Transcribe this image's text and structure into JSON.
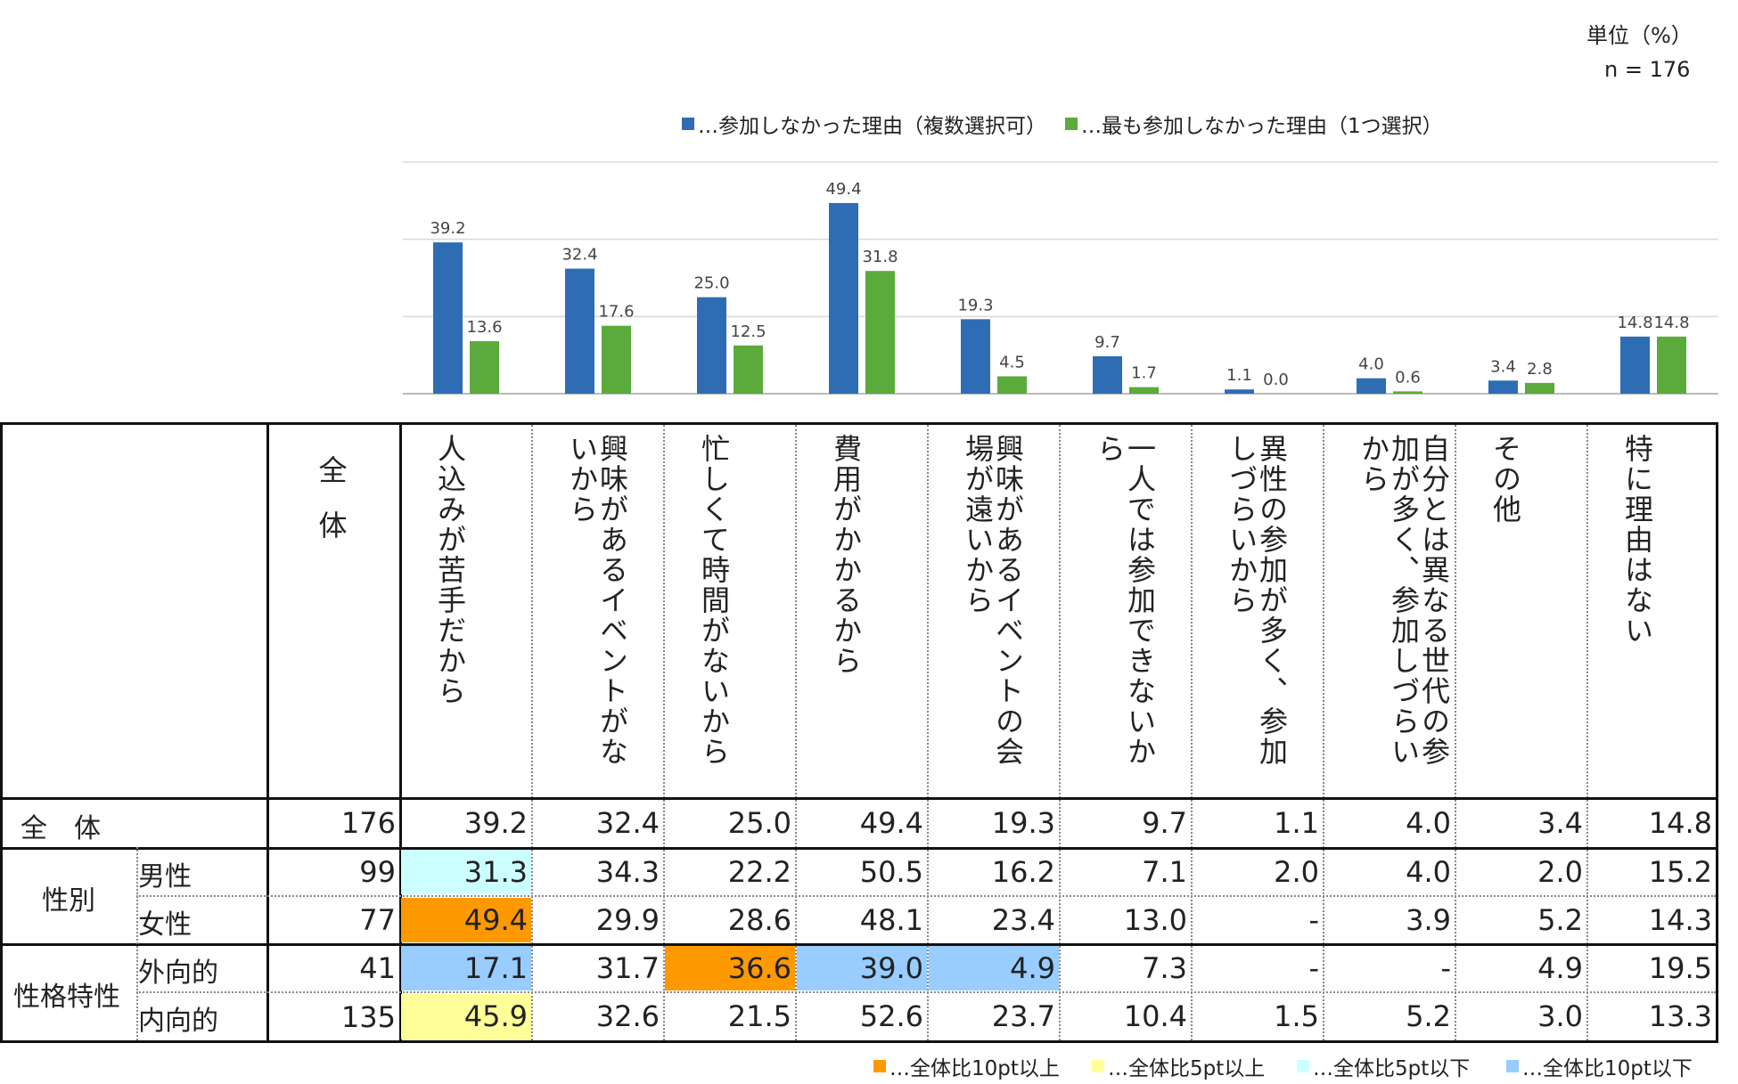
{
  "unit": "単位（%）",
  "n_label": "n = 176",
  "legend": {
    "blue": "…参加しなかった理由（複数選択可）",
    "green": "…最も参加しなかった理由（1つ選択）"
  },
  "colors": {
    "blue": "#2e6db4",
    "green": "#5aab3c",
    "orange": "#ff9900",
    "yellow": "#ffff99",
    "lightcyan": "#ccffff",
    "lightblue": "#99ccff"
  },
  "chart_data": {
    "type": "bar",
    "categories": [
      "人込みが苦手だから",
      "興味があるイベントがないから",
      "忙しくて時間がないから",
      "費用がかかるから",
      "興味があるイベントの会場が遠いから",
      "一人では参加できないから",
      "異性の参加が多く、参加しづらいから",
      "自分とは異なる世代の参加が多く、参加しづらいから",
      "その他",
      "特に理由はない"
    ],
    "series": [
      {
        "name": "…参加しなかった理由（複数選択可）",
        "values": [
          39.2,
          32.4,
          25.0,
          49.4,
          19.3,
          9.7,
          1.1,
          4.0,
          3.4,
          14.8
        ]
      },
      {
        "name": "…最も参加しなかった理由（1つ選択）",
        "values": [
          13.6,
          17.6,
          12.5,
          31.8,
          4.5,
          1.7,
          0.0,
          0.6,
          2.8,
          14.8
        ]
      }
    ],
    "value_labels": [
      [
        "39.2",
        "32.4",
        "25.0",
        "49.4",
        "19.3",
        "9.7",
        "1.1",
        "4.0",
        "3.4",
        "14.8"
      ],
      [
        "13.6",
        "17.6",
        "12.5",
        "31.8",
        "4.5",
        "1.7",
        "0.0",
        "0.6",
        "2.8",
        "14.8"
      ]
    ],
    "ylim": [
      0,
      60
    ],
    "grid": true,
    "legend_position": "top-center"
  },
  "table": {
    "total_header": "全\n体",
    "headers": [
      "人込みが苦手だから",
      "興味があるイベントがないから",
      "忙しくて時間がないから",
      "費用がかかるから",
      "興味があるイベントの会場が遠いから",
      "一人では参加できないから",
      "異性の参加が多く、参加しづらいから",
      "自分とは異なる世代の参加が多く、参加しづらいから",
      "その他",
      "特に理由はない"
    ],
    "group_labels": {
      "overall": "全　体",
      "gender": "性別",
      "personality": "性格特性"
    },
    "rows": [
      {
        "group": "overall",
        "label": "",
        "n": "176",
        "values": [
          "39.2",
          "32.4",
          "25.0",
          "49.4",
          "19.3",
          "9.7",
          "1.1",
          "4.0",
          "3.4",
          "14.8"
        ],
        "highlights": [
          "",
          "",
          "",
          "",
          "",
          "",
          "",
          "",
          "",
          ""
        ]
      },
      {
        "group": "gender",
        "label": "男性",
        "n": "99",
        "values": [
          "31.3",
          "34.3",
          "22.2",
          "50.5",
          "16.2",
          "7.1",
          "2.0",
          "4.0",
          "2.0",
          "15.2"
        ],
        "highlights": [
          "lightcyan",
          "",
          "",
          "",
          "",
          "",
          "",
          "",
          "",
          ""
        ]
      },
      {
        "group": "gender",
        "label": "女性",
        "n": "77",
        "values": [
          "49.4",
          "29.9",
          "28.6",
          "48.1",
          "23.4",
          "13.0",
          "-",
          "3.9",
          "5.2",
          "14.3"
        ],
        "highlights": [
          "orange",
          "",
          "",
          "",
          "",
          "",
          "",
          "",
          "",
          ""
        ]
      },
      {
        "group": "personality",
        "label": "外向的",
        "n": "41",
        "values": [
          "17.1",
          "31.7",
          "36.6",
          "39.0",
          "4.9",
          "7.3",
          "-",
          "-",
          "4.9",
          "19.5"
        ],
        "highlights": [
          "lightblue",
          "",
          "orange",
          "lightblue",
          "lightblue",
          "",
          "",
          "",
          "",
          ""
        ]
      },
      {
        "group": "personality",
        "label": "内向的",
        "n": "135",
        "values": [
          "45.9",
          "32.6",
          "21.5",
          "52.6",
          "23.7",
          "10.4",
          "1.5",
          "5.2",
          "3.0",
          "13.3"
        ],
        "highlights": [
          "yellow",
          "",
          "",
          "",
          "",
          "",
          "",
          "",
          "",
          ""
        ]
      }
    ]
  },
  "bottom_legend": {
    "orange": "…全体比10pt以上",
    "yellow": "…全体比5pt以上",
    "lightcyan": "…全体比5pt以下",
    "lightblue": "…全体比10pt以下"
  }
}
